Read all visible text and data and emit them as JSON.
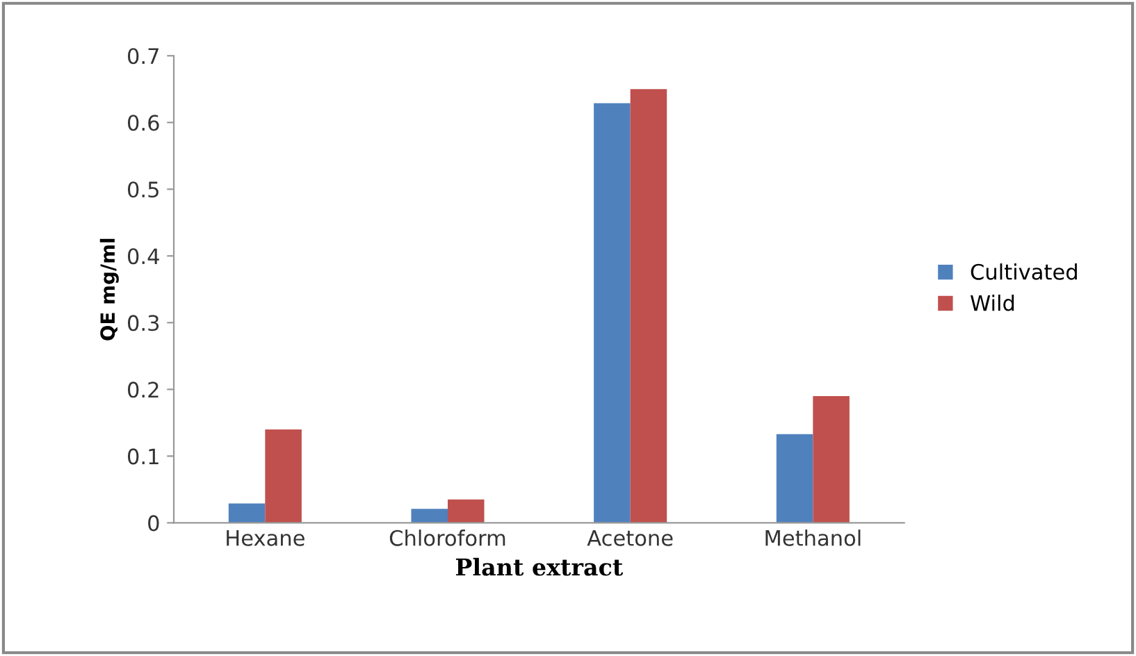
{
  "chart_data": {
    "type": "bar",
    "xlabel": "Plant extract",
    "ylabel": "QE mg/ml",
    "categories": [
      "Hexane",
      "Chloroform",
      "Acetone",
      "Methanol"
    ],
    "series": [
      {
        "name": "Cultivated",
        "color": "#4f81bd",
        "values": [
          0.029,
          0.021,
          0.629,
          0.133
        ]
      },
      {
        "name": "Wild",
        "color": "#c0504d",
        "values": [
          0.14,
          0.035,
          0.65,
          0.19
        ]
      }
    ],
    "ylim": [
      0,
      0.7
    ],
    "yticks": [
      {
        "value": 0,
        "label": "0"
      },
      0.1,
      0.2,
      0.3,
      0.4,
      0.5,
      0.6,
      0.7
    ],
    "grid": false,
    "legend": "right"
  }
}
